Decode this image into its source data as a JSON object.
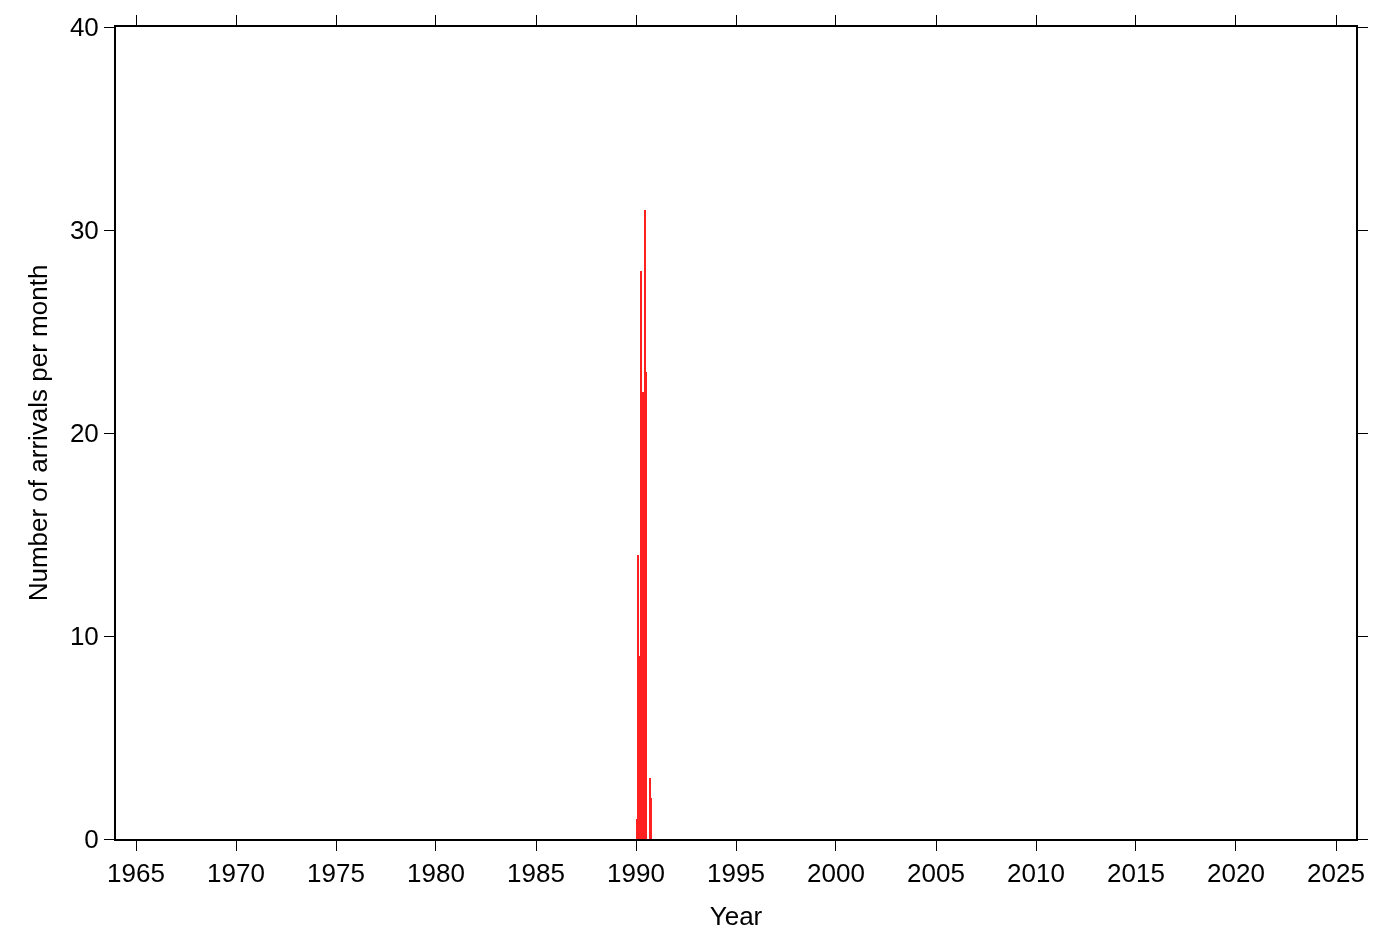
{
  "chart_data": {
    "type": "bar",
    "xlabel": "Year",
    "ylabel": "Number of arrivals per month",
    "x": [
      "1990-01",
      "1990-02",
      "1990-03",
      "1990-04",
      "1990-05",
      "1990-06",
      "1990-07",
      "1990-08",
      "1990-09",
      "1990-10"
    ],
    "values": [
      1,
      14,
      9,
      28,
      22,
      31,
      23,
      0,
      3,
      2
    ],
    "color": "#ff2020",
    "xlim": [
      "1964",
      "2026"
    ],
    "xticks": [
      "1965",
      "1970",
      "1975",
      "1980",
      "1985",
      "1990",
      "1995",
      "2000",
      "2005",
      "2010",
      "2015",
      "2020",
      "2025"
    ],
    "ylim": [
      0,
      40
    ],
    "yticks": [
      0,
      10,
      20,
      30,
      40
    ]
  }
}
